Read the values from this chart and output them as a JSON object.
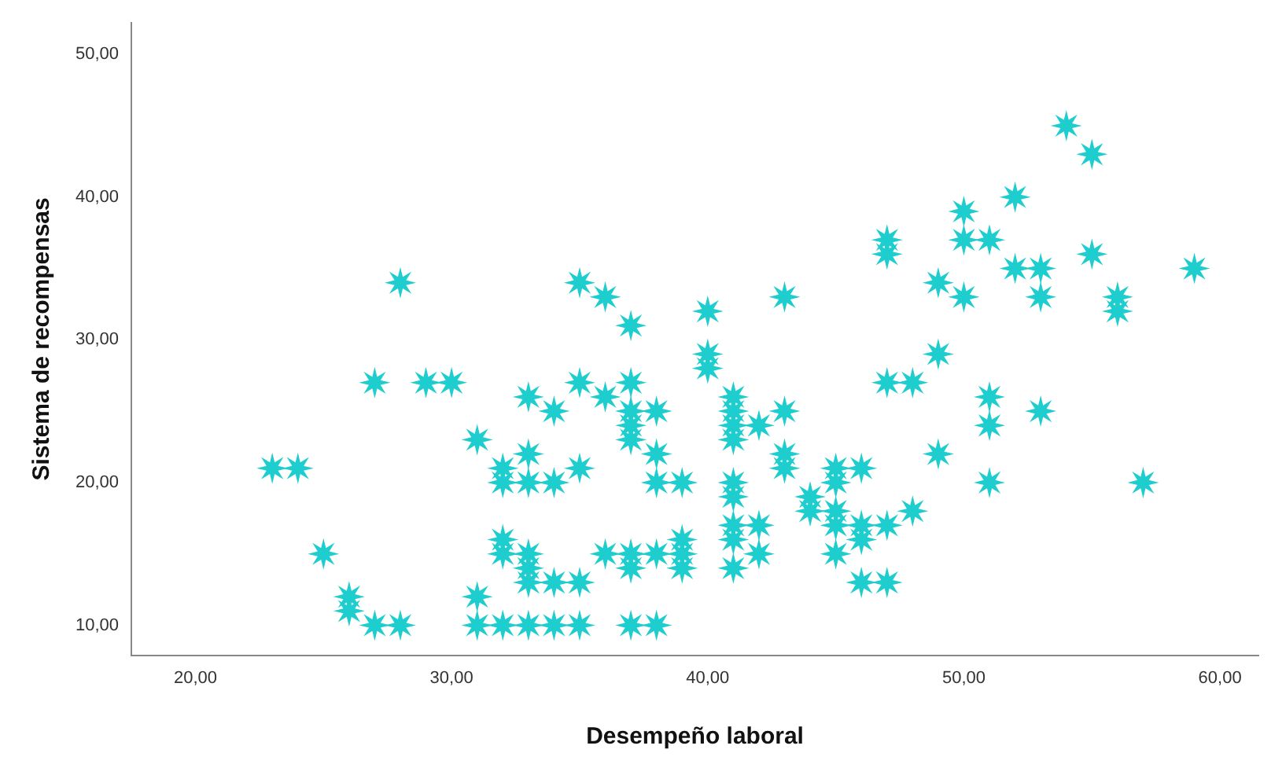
{
  "chart_data": {
    "type": "scatter",
    "xlabel": "Desempeño laboral",
    "ylabel": "Sistema de recompensas",
    "xlim": [
      17.5,
      61.5
    ],
    "ylim": [
      7.9,
      52.2
    ],
    "xticks": [
      {
        "value": 20,
        "label": "20,00"
      },
      {
        "value": 30,
        "label": "30,00"
      },
      {
        "value": 40,
        "label": "40,00"
      },
      {
        "value": 50,
        "label": "50,00"
      },
      {
        "value": 60,
        "label": "60,00"
      }
    ],
    "yticks": [
      {
        "value": 10,
        "label": "10,00"
      },
      {
        "value": 20,
        "label": "20,00"
      },
      {
        "value": 30,
        "label": "30,00"
      },
      {
        "value": 40,
        "label": "40,00"
      },
      {
        "value": 50,
        "label": "50,00"
      }
    ],
    "grid": false,
    "legend": false,
    "marker": "star",
    "series": [
      {
        "color": "#1ecdcd",
        "x": [
          23,
          24,
          25,
          26,
          26,
          27,
          28,
          27,
          28,
          29,
          30,
          31,
          31,
          31,
          32,
          32,
          32,
          32,
          32,
          33,
          33,
          33,
          33,
          33,
          33,
          33,
          34,
          34,
          34,
          34,
          35,
          35,
          35,
          35,
          35,
          36,
          36,
          36,
          37,
          37,
          37,
          37,
          37,
          37,
          37,
          37,
          38,
          38,
          38,
          38,
          38,
          39,
          39,
          39,
          39,
          40,
          40,
          40,
          41,
          41,
          41,
          41,
          41,
          41,
          41,
          41,
          41,
          42,
          42,
          42,
          43,
          43,
          43,
          43,
          44,
          44,
          45,
          45,
          45,
          45,
          45,
          46,
          46,
          46,
          46,
          47,
          47,
          47,
          47,
          47,
          48,
          48,
          49,
          49,
          49,
          50,
          50,
          50,
          51,
          51,
          51,
          51,
          52,
          52,
          53,
          53,
          53,
          54,
          55,
          55,
          56,
          56,
          57,
          59
        ],
        "values": [
          21,
          21,
          15,
          12,
          11,
          10,
          10,
          27,
          34,
          27,
          27,
          23,
          12,
          10,
          21,
          20,
          16,
          15,
          10,
          26,
          22,
          20,
          15,
          14,
          13,
          10,
          25,
          20,
          13,
          10,
          34,
          27,
          21,
          13,
          10,
          33,
          26,
          15,
          31,
          27,
          25,
          24,
          23,
          15,
          14,
          10,
          25,
          22,
          20,
          15,
          10,
          20,
          16,
          15,
          14,
          32,
          29,
          28,
          26,
          25,
          24,
          23,
          20,
          19,
          17,
          16,
          14,
          24,
          17,
          15,
          33,
          25,
          22,
          21,
          19,
          18,
          21,
          20,
          18,
          17,
          15,
          21,
          17,
          16,
          13,
          37,
          36,
          27,
          17,
          13,
          27,
          18,
          34,
          29,
          22,
          39,
          37,
          33,
          37,
          26,
          24,
          20,
          40,
          35,
          35,
          33,
          25,
          45,
          43,
          36,
          33,
          32,
          20,
          35
        ]
      }
    ]
  }
}
